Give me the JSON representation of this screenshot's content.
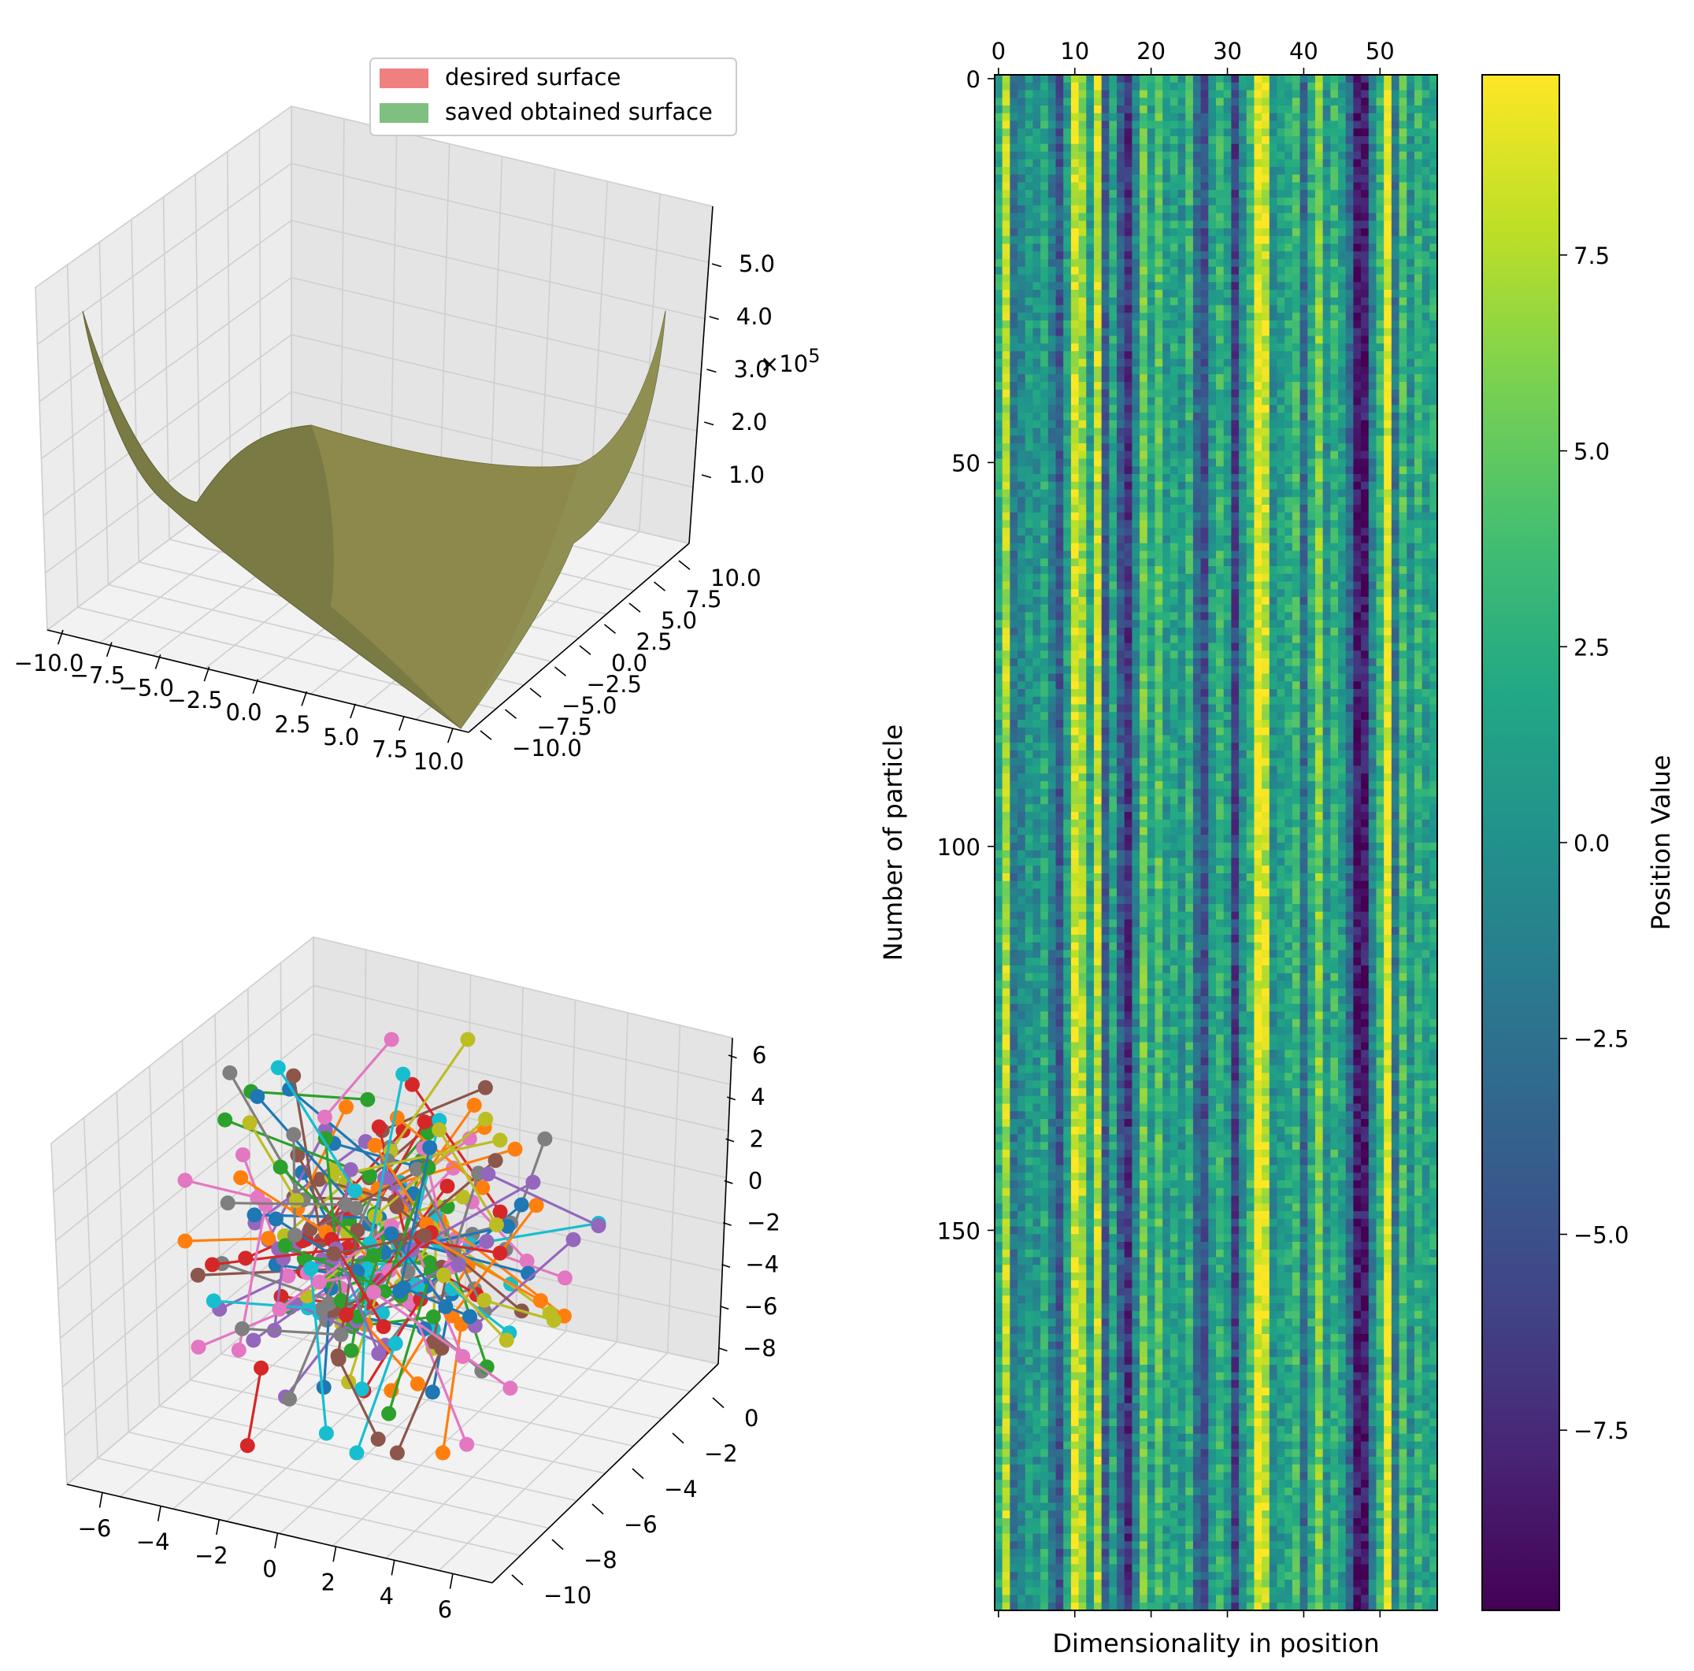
{
  "chart_data": [
    {
      "panel": "top-left",
      "type": "surface3d",
      "title": "",
      "legend": {
        "placement": "top-right",
        "entries": [
          {
            "label": "desired surface",
            "color": "#f08080"
          },
          {
            "label": "saved obtained surface",
            "color": "#7fbf7f"
          }
        ]
      },
      "surface_color": "#80804a",
      "x_ticks": [
        "−10.0",
        "−7.5",
        "−5.0",
        "−2.5",
        "0.0",
        "2.5",
        "5.0",
        "7.5",
        "10.0"
      ],
      "y_ticks": [
        "10.0",
        "7.5",
        "5.0",
        "2.5",
        "0.0",
        "−2.5",
        "−5.0",
        "−7.5",
        "−10.0"
      ],
      "z_ticks": [
        "5.0",
        "4.0",
        "3.0",
        "2.0",
        "1.0"
      ],
      "z_offset_label": "×10",
      "z_offset_exp": "5",
      "xlim": [
        -10,
        10
      ],
      "ylim": [
        -10,
        10
      ],
      "zlim": [
        0,
        5.5
      ]
    },
    {
      "panel": "bottom-left",
      "type": "scatter3d-lines",
      "title": "",
      "x_ticks": [
        "−6",
        "−4",
        "−2",
        "0",
        "2",
        "4",
        "6"
      ],
      "y_ticks": [
        "0",
        "−2",
        "−4",
        "−6",
        "−8",
        "−10"
      ],
      "z_ticks": [
        "6",
        "4",
        "2",
        "0",
        "−2",
        "−4",
        "−6",
        "−8"
      ],
      "series_colors": [
        "#1f77b4",
        "#ff7f0e",
        "#2ca02c",
        "#d62728",
        "#9467bd",
        "#8c564b",
        "#e377c2",
        "#7f7f7f",
        "#bcbd22",
        "#17becf"
      ],
      "particles": 200
    },
    {
      "panel": "right",
      "type": "heatmap",
      "title": "",
      "xlabel": "Dimensionality in position",
      "ylabel": "Number of particle",
      "x_ticks": [
        "0",
        "10",
        "20",
        "30",
        "40",
        "50"
      ],
      "y_ticks": [
        "0",
        "50",
        "100",
        "150"
      ],
      "rows": 200,
      "columns": 58,
      "colormap": "viridis",
      "clim": [
        -9.8,
        9.8
      ],
      "column_means": [
        2.0,
        7.5,
        -2.0,
        -1.0,
        1.0,
        0.0,
        2.0,
        -1.5,
        -4.5,
        1.0,
        8.5,
        7.0,
        1.0,
        8.0,
        -4.0,
        2.0,
        -4.0,
        -7.0,
        -1.0,
        5.0,
        1.0,
        4.5,
        0.5,
        2.0,
        0.0,
        3.0,
        -3.0,
        -5.0,
        1.0,
        3.0,
        1.0,
        -6.0,
        0.0,
        3.0,
        9.5,
        8.0,
        0.0,
        1.0,
        2.0,
        3.5,
        -3.0,
        2.0,
        6.0,
        0.0,
        3.0,
        1.0,
        -3.0,
        -8.5,
        -8.5,
        -1.0,
        3.0,
        9.5,
        -2.0,
        4.0,
        0.0,
        3.0,
        1.0,
        2.0
      ],
      "colorbar": {
        "label": "Position Value",
        "ticks": [
          "7.5",
          "5.0",
          "2.5",
          "0.0",
          "−2.5",
          "−5.0",
          "−7.5"
        ]
      }
    }
  ]
}
